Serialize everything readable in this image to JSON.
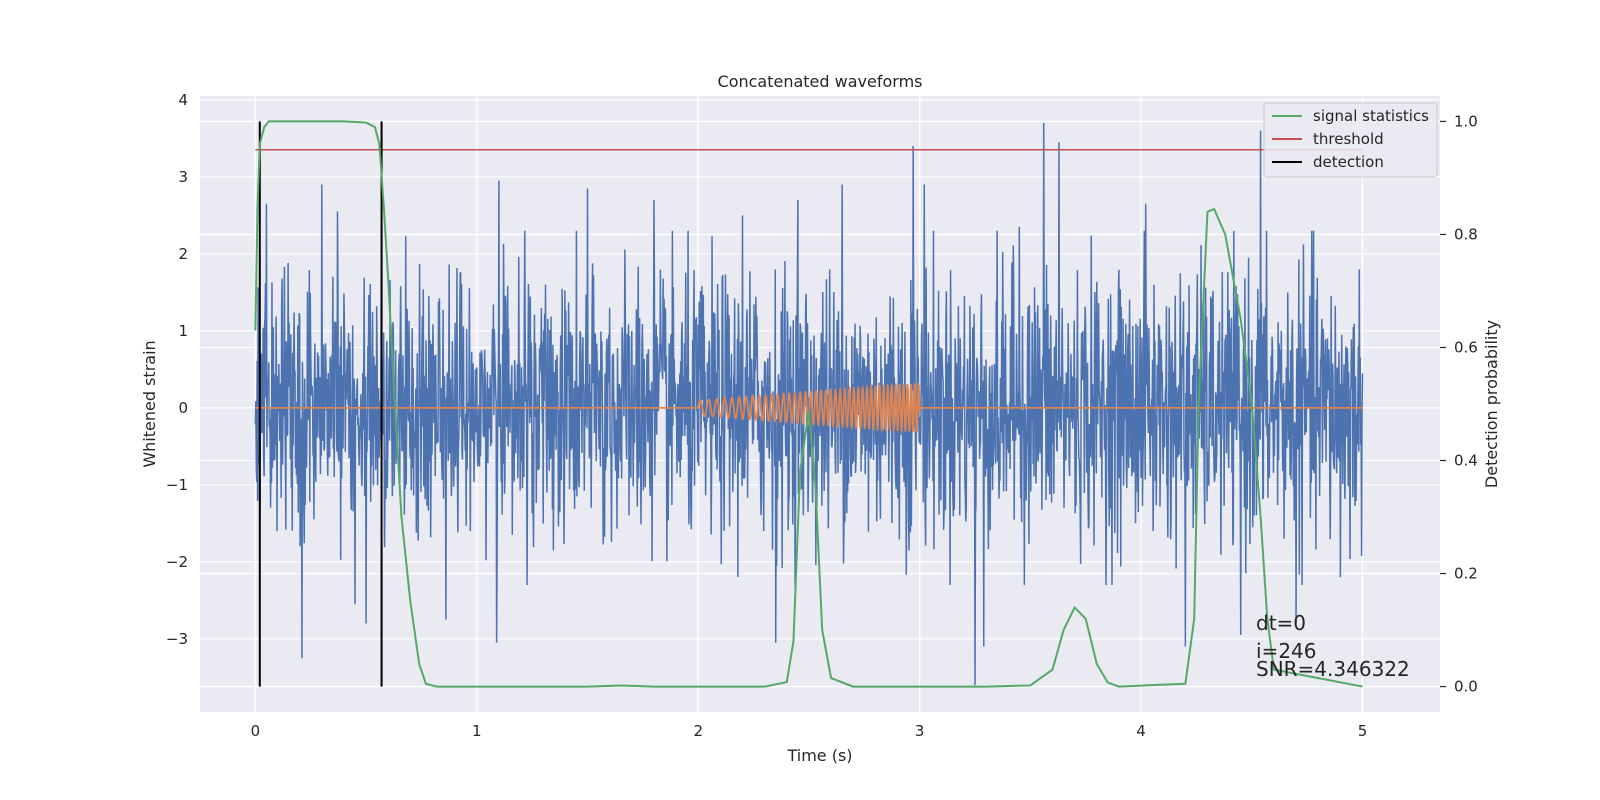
{
  "chart_data": {
    "type": "line",
    "title": "Concatenated waveforms",
    "xlabel": "Time (s)",
    "ylabel": "Whitened strain",
    "y2label": "Detection probability",
    "xlim": [
      -0.25,
      5.35
    ],
    "ylim": [
      -3.95,
      4.05
    ],
    "y2lim": [
      -0.045,
      1.045
    ],
    "xticks": [
      0,
      1,
      2,
      3,
      4,
      5
    ],
    "yticks": [
      -3,
      -2,
      -1,
      0,
      1,
      2,
      3,
      4
    ],
    "y2ticks": [
      0.0,
      0.2,
      0.4,
      0.6,
      0.8,
      1.0
    ],
    "y2ticklabels": [
      "0.0",
      "0.2",
      "0.4",
      "0.6",
      "0.8",
      "1.0"
    ],
    "grid": true,
    "legend_position": "top-right",
    "legend": [
      "signal statistics",
      "threshold",
      "detection"
    ],
    "colors": {
      "strain": "#4c72b0",
      "template": "#dd8452",
      "signal_statistics": "#55a868",
      "threshold": "#c44e52",
      "detection": "#000000",
      "background": "#eaeaf2",
      "grid": "#ffffff"
    },
    "strain": {
      "x_range": [
        0,
        5
      ],
      "noise_std": 0.85,
      "peaks": [
        {
          "x": 0.02,
          "y": -1.4
        },
        {
          "x": 0.05,
          "y": 2.65
        },
        {
          "x": 0.3,
          "y": 2.9
        },
        {
          "x": 0.37,
          "y": 2.55
        },
        {
          "x": 0.45,
          "y": -2.55
        },
        {
          "x": 0.5,
          "y": -2.8
        },
        {
          "x": 0.21,
          "y": -3.25
        },
        {
          "x": 0.86,
          "y": -2.75
        },
        {
          "x": 1.09,
          "y": -3.05
        },
        {
          "x": 1.1,
          "y": 2.95
        },
        {
          "x": 1.5,
          "y": 2.85
        },
        {
          "x": 1.8,
          "y": 2.7
        },
        {
          "x": 2.2,
          "y": 2.5
        },
        {
          "x": 2.35,
          "y": -3.05
        },
        {
          "x": 2.45,
          "y": 2.7
        },
        {
          "x": 2.65,
          "y": 2.9
        },
        {
          "x": 2.97,
          "y": 3.4
        },
        {
          "x": 3.02,
          "y": 2.9
        },
        {
          "x": 3.25,
          "y": -3.6
        },
        {
          "x": 3.29,
          "y": -3.1
        },
        {
          "x": 3.45,
          "y": 2.35
        },
        {
          "x": 3.56,
          "y": 3.7
        },
        {
          "x": 3.63,
          "y": 3.45
        },
        {
          "x": 4.02,
          "y": 2.65
        },
        {
          "x": 4.2,
          "y": -3.1
        },
        {
          "x": 4.45,
          "y": -2.95
        },
        {
          "x": 4.54,
          "y": 3.6
        },
        {
          "x": 4.7,
          "y": -2.8
        },
        {
          "x": 4.77,
          "y": 2.3
        },
        {
          "x": 4.9,
          "y": -2.2
        }
      ]
    },
    "template": {
      "x": [
        2.0,
        3.0
      ],
      "start_amplitude": 0.1,
      "end_amplitude": 0.32,
      "start_freq": 25,
      "end_freq": 60
    },
    "signal_statistics": {
      "x": [
        0.0,
        0.01,
        0.02,
        0.04,
        0.06,
        0.1,
        0.2,
        0.3,
        0.4,
        0.5,
        0.54,
        0.56,
        0.58,
        0.6,
        0.63,
        0.66,
        0.7,
        0.74,
        0.77,
        0.82,
        1.0,
        1.5,
        1.65,
        1.8,
        2.0,
        2.3,
        2.4,
        2.43,
        2.46,
        2.5,
        2.53,
        2.56,
        2.6,
        2.7,
        3.0,
        3.3,
        3.5,
        3.6,
        3.65,
        3.7,
        3.75,
        3.8,
        3.85,
        3.9,
        4.2,
        4.24,
        4.26,
        4.3,
        4.33,
        4.38,
        4.45,
        4.5,
        4.54,
        4.57,
        4.6,
        5.0
      ],
      "y": [
        0.63,
        0.85,
        0.96,
        0.99,
        1.0,
        1.0,
        1.0,
        1.0,
        1.0,
        0.998,
        0.99,
        0.96,
        0.85,
        0.72,
        0.5,
        0.3,
        0.15,
        0.04,
        0.005,
        0.0,
        0.0,
        0.0,
        0.002,
        0.0,
        0.0,
        0.0,
        0.008,
        0.08,
        0.38,
        0.49,
        0.35,
        0.1,
        0.015,
        0.0,
        0.0,
        0.0,
        0.002,
        0.03,
        0.1,
        0.14,
        0.12,
        0.04,
        0.007,
        0.0,
        0.005,
        0.12,
        0.5,
        0.84,
        0.845,
        0.8,
        0.65,
        0.5,
        0.3,
        0.12,
        0.03,
        0.0
      ]
    },
    "threshold": {
      "x": [
        0,
        5
      ],
      "y2": 0.95
    },
    "detections": [
      0.02,
      0.57
    ],
    "annotations": [
      "dt=0",
      "i=246",
      "SNR=4.346322"
    ]
  }
}
